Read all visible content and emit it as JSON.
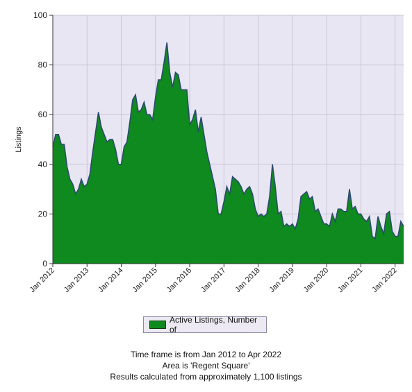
{
  "chart_data": {
    "type": "area",
    "ylabel": "Listings",
    "ylim": [
      0,
      100
    ],
    "yticks": [
      0,
      20,
      40,
      60,
      80,
      100
    ],
    "x_tick_labels": [
      "Jan 2012",
      "Jan 2013",
      "Jan 2014",
      "Jan 2015",
      "Jan 2016",
      "Jan 2017",
      "Jan 2018",
      "Jan 2019",
      "Jan 2020",
      "Jan 2021",
      "Jan 2022"
    ],
    "x_start": "Jan 2012",
    "x_end": "Apr 2022",
    "grid": true,
    "legend_position": "bottom-center",
    "colors": {
      "fill": "#0f8a1f",
      "line": "#2c4a6e",
      "plot_bg": "#e9e6f4"
    },
    "series": [
      {
        "name": "Active Listings, Number of",
        "values": [
          47,
          52,
          52,
          48,
          48,
          39,
          34,
          32,
          28,
          30,
          34,
          31,
          32,
          36,
          45,
          53,
          61,
          55,
          52,
          49,
          50,
          50,
          46,
          40,
          40,
          47,
          49,
          57,
          66,
          68,
          61,
          62,
          65,
          60,
          60,
          58,
          67,
          74,
          74,
          81,
          89,
          77,
          71,
          77,
          76,
          70,
          70,
          70,
          56,
          58,
          62,
          53,
          59,
          52,
          45,
          40,
          35,
          30,
          20,
          20,
          25,
          31,
          28,
          35,
          34,
          33,
          31,
          28,
          30,
          31,
          28,
          22,
          19,
          20,
          19,
          20,
          27,
          40,
          31,
          20,
          21,
          15,
          16,
          15,
          16,
          14,
          18,
          27,
          28,
          29,
          26,
          27,
          21,
          22,
          19,
          16,
          16,
          15,
          20,
          17,
          22,
          22,
          21,
          21,
          30,
          22,
          23,
          20,
          20,
          18,
          17,
          19,
          11,
          10,
          19,
          15,
          12,
          20,
          21,
          13,
          11,
          11,
          17,
          15
        ]
      }
    ]
  },
  "legend": {
    "label": "Active Listings, Number of"
  },
  "footer": {
    "line1": "Time frame is from Jan 2012 to Apr 2022",
    "line2": "Area is 'Regent Square'",
    "line3": "Results calculated from approximately 1,100 listings"
  }
}
